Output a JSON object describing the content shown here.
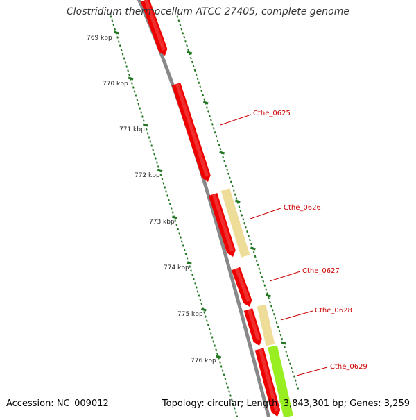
{
  "title": "Clostridium thermocellum ATCC 27405, complete genome",
  "footer": {
    "accession": "Accession: NC_009012",
    "summary": "Topology: circular; Length: 3,843,301 bp; Genes: 3,259"
  },
  "ruler_labels": [
    "769 kbp",
    "770 kbp",
    "771 kbp",
    "772 kbp",
    "773 kbp",
    "774 kbp",
    "775 kbp",
    "776 kbp"
  ],
  "gene_labels": [
    "Cthe_0625",
    "Cthe_0626",
    "Cthe_0627",
    "Cthe_0628",
    "Cthe_0629"
  ],
  "colors": {
    "gene_red": "#ee0000",
    "gene_tan": "#eedd99",
    "gene_green": "#99ee22",
    "backbone": "#888888",
    "ruler": "#227722",
    "label_red": "#cc0000"
  }
}
